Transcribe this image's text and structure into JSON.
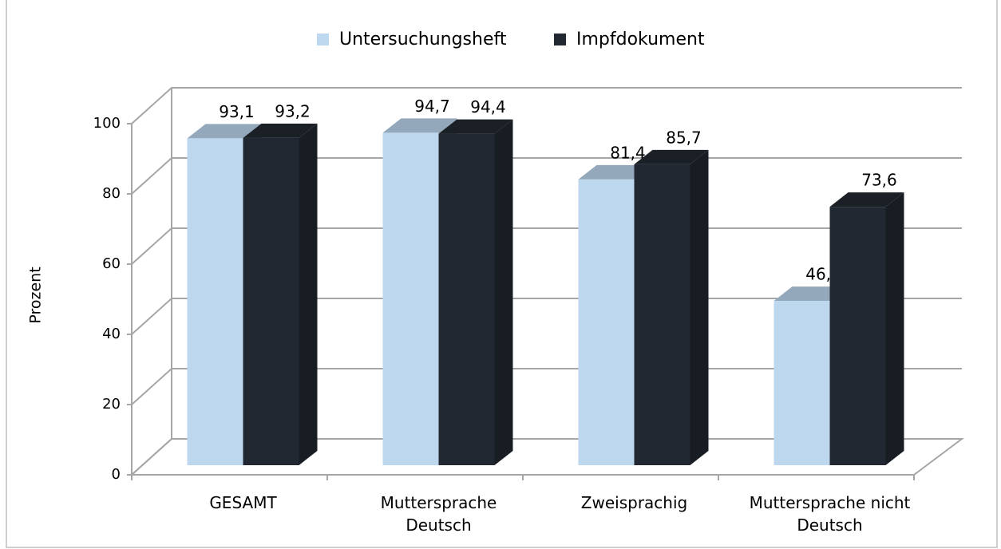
{
  "chart_data": {
    "type": "bar3d",
    "categories": [
      "GESAMT",
      "Muttersprache\nDeutsch",
      "Zweisprachig",
      "Muttersprache nicht\nDeutsch"
    ],
    "series": [
      {
        "name": "Untersuchungsheft",
        "color": "#bdd7ee",
        "values": [
          93.1,
          94.7,
          81.4,
          46.8
        ],
        "value_labels": [
          "93,1",
          "94,7",
          "81,4",
          "46,8"
        ]
      },
      {
        "name": "Impfdokument",
        "color": "#222831",
        "values": [
          93.2,
          94.4,
          85.7,
          73.6
        ],
        "value_labels": [
          "93,2",
          "94,4",
          "85,7",
          "73,6"
        ]
      }
    ],
    "ylabel": "Prozent",
    "ylim": [
      0,
      100
    ],
    "yticks": [
      0,
      20,
      40,
      60,
      80,
      100
    ],
    "grid": true,
    "legend": "top"
  }
}
